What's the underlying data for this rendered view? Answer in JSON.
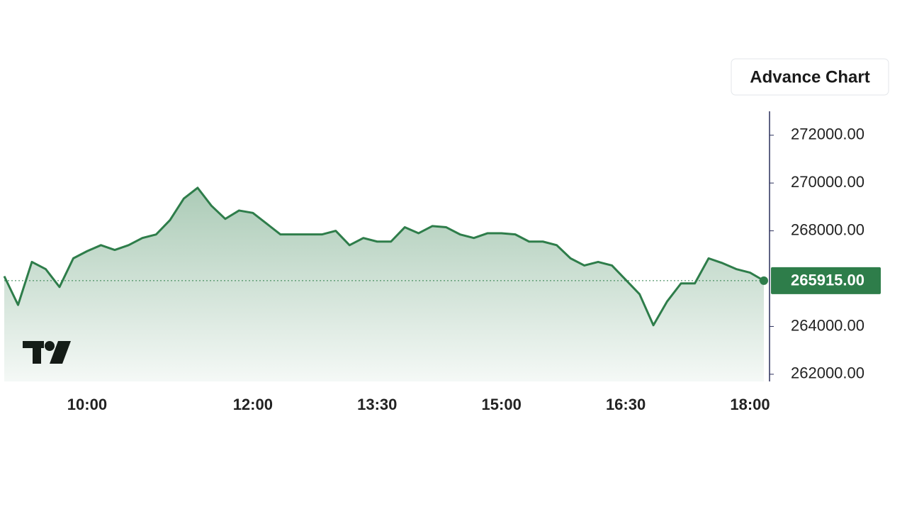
{
  "button": "Advance Chart",
  "chart_data": {
    "type": "line",
    "x": [
      "09:00",
      "09:10",
      "09:20",
      "09:30",
      "09:40",
      "09:50",
      "10:00",
      "10:10",
      "10:20",
      "10:30",
      "10:40",
      "10:50",
      "11:00",
      "11:10",
      "11:20",
      "11:30",
      "11:40",
      "11:50",
      "12:00",
      "12:10",
      "12:20",
      "12:30",
      "12:40",
      "12:50",
      "13:00",
      "13:10",
      "13:20",
      "13:30",
      "13:40",
      "13:50",
      "14:00",
      "14:10",
      "14:20",
      "14:30",
      "14:40",
      "14:50",
      "15:00",
      "15:10",
      "15:20",
      "15:30",
      "15:40",
      "15:50",
      "16:00",
      "16:10",
      "16:20",
      "16:30",
      "16:40",
      "16:50",
      "17:00",
      "17:10",
      "17:20",
      "17:30",
      "17:40",
      "17:50",
      "18:00",
      "18:10"
    ],
    "series": [
      {
        "color": "#2e7d4a",
        "values": [
          266100,
          264900,
          266700,
          266400,
          265650,
          266850,
          267150,
          267400,
          267200,
          267400,
          267700,
          267850,
          268450,
          269350,
          269800,
          269050,
          268500,
          268850,
          268750,
          268300,
          267850,
          267850,
          267850,
          267850,
          268000,
          267400,
          267700,
          267550,
          267550,
          268150,
          267900,
          268200,
          268150,
          267850,
          267700,
          267900,
          267900,
          267850,
          267550,
          267550,
          267400,
          266850,
          266550,
          266700,
          266550,
          265950,
          265350,
          264050,
          265050,
          265800,
          265800,
          266850,
          266650,
          266400,
          266250,
          265915
        ]
      }
    ],
    "xticks": [
      "10:00",
      "12:00",
      "13:30",
      "15:00",
      "16:30",
      "18:00"
    ],
    "ylim": [
      261700,
      273000
    ],
    "yticks": [
      {
        "value": 262000,
        "label": "262000.00"
      },
      {
        "value": 264000,
        "label": "264000.00"
      },
      {
        "value": 268000,
        "label": "268000.00"
      },
      {
        "value": 270000,
        "label": "270000.00"
      },
      {
        "value": 272000,
        "label": "272000.00"
      }
    ],
    "price_line": {
      "value": 265915,
      "label": "265915.00"
    }
  }
}
